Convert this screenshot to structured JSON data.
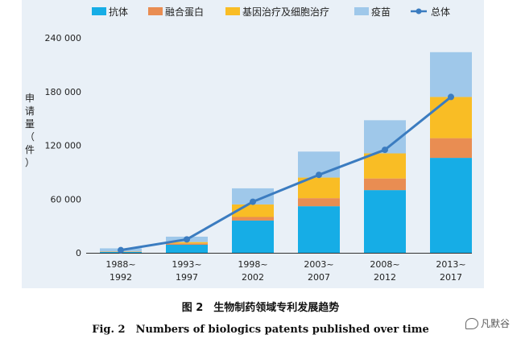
{
  "chart_data": {
    "type": "bar",
    "stacked": true,
    "categories": [
      [
        "1988~",
        "1992"
      ],
      [
        "1993~",
        "1997"
      ],
      [
        "1998~",
        "2002"
      ],
      [
        "2003~",
        "2007"
      ],
      [
        "2008~",
        "2012"
      ],
      [
        "2013~",
        "2017"
      ]
    ],
    "series": [
      {
        "name": "抗体",
        "color": "#16ade6",
        "values": [
          1000,
          9000,
          36000,
          52000,
          70000,
          106000
        ]
      },
      {
        "name": "融合蛋白",
        "color": "#e98d52",
        "values": [
          300,
          1500,
          4000,
          9000,
          13000,
          22000
        ]
      },
      {
        "name": "基因治疗及细胞治疗",
        "color": "#f9bd25",
        "values": [
          300,
          1500,
          14000,
          23000,
          28000,
          46000
        ]
      },
      {
        "name": "疫苗",
        "color": "#9fc8ea",
        "values": [
          3400,
          6000,
          18000,
          29000,
          37000,
          50000
        ]
      }
    ],
    "line": {
      "name": "总体",
      "color": "#3b7cc0",
      "values": [
        3000,
        15000,
        57000,
        87000,
        115000,
        174000
      ]
    },
    "ylabel": "申请量（件）",
    "ylim": [
      0,
      240000
    ],
    "yticks": [
      0,
      60000,
      120000,
      180000,
      240000
    ],
    "ytick_labels": [
      "0",
      "60 000",
      "120 000",
      "180 000",
      "240 000"
    ],
    "legend_position": "top",
    "grid": false
  },
  "caption": {
    "cn": "图 2　生物制药领域专利发展趋势",
    "en": "Fig. 2　Numbers of biologics patents published over time"
  },
  "watermark": {
    "text": "凡默谷",
    "icon": "wechat-icon"
  }
}
